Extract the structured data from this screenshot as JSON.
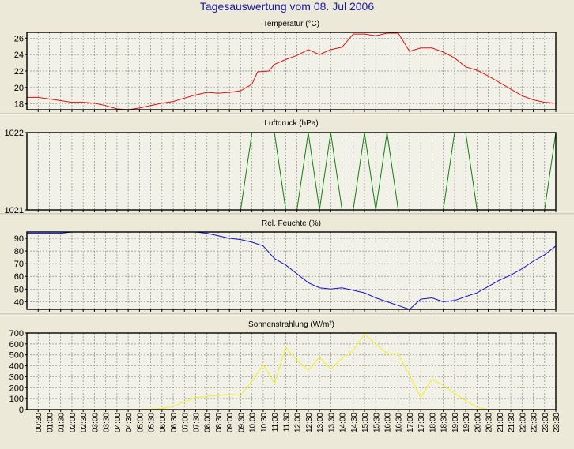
{
  "page_title": "Tagesauswertung vom 08. Jul 2006",
  "x_ticks": [
    "00:30",
    "01:00",
    "01:30",
    "02:00",
    "02:30",
    "03:00",
    "03:30",
    "04:00",
    "04:30",
    "05:00",
    "05:30",
    "06:00",
    "06:30",
    "07:00",
    "07:30",
    "08:00",
    "08:30",
    "09:00",
    "09:30",
    "10:00",
    "10:30",
    "11:00",
    "11:30",
    "12:00",
    "12:30",
    "13:00",
    "13:30",
    "14:00",
    "14:30",
    "15:00",
    "15:30",
    "16:00",
    "16:30",
    "17:00",
    "17:30",
    "18:00",
    "18:30",
    "19:00",
    "19:30",
    "20:00",
    "20:30",
    "21:00",
    "21:30",
    "22:00",
    "22:30",
    "23:00",
    "23:30"
  ],
  "colors": {
    "background": "#ece9d8",
    "plot_background": "#f2f1e8",
    "grid": "#8c8c8c",
    "title": "#1a1aa6",
    "temperature": "#e01010",
    "pressure": "#108010",
    "humidity": "#1010d0",
    "radiation": "#f0f020"
  },
  "chart_data": [
    {
      "type": "line",
      "title": "Temperatur (°C)",
      "ylim": [
        17.3,
        26.7
      ],
      "yticks": [
        "18",
        "20",
        "22",
        "24",
        "26"
      ],
      "series": [
        {
          "x": [
            "00:00",
            "00:30",
            "01:00",
            "01:30",
            "02:00",
            "02:30",
            "03:00",
            "03:30",
            "04:00",
            "04:30",
            "05:00",
            "05:30",
            "06:00",
            "06:30",
            "07:00",
            "07:30",
            "08:00",
            "08:30",
            "09:00",
            "09:30",
            "10:00",
            "10:15",
            "10:45",
            "11:00",
            "11:30",
            "12:00",
            "12:30",
            "13:00",
            "13:30",
            "14:00",
            "14:30",
            "15:00",
            "15:30",
            "16:00",
            "16:30",
            "17:00",
            "17:30",
            "18:00",
            "18:30",
            "19:00",
            "19:30",
            "20:00",
            "20:30",
            "21:00",
            "21:30",
            "22:00",
            "22:30",
            "23:00",
            "23:30"
          ],
          "values": [
            18.8,
            18.8,
            18.6,
            18.4,
            18.2,
            18.2,
            18.1,
            17.8,
            17.4,
            17.3,
            17.5,
            17.8,
            18.1,
            18.3,
            18.7,
            19.1,
            19.4,
            19.3,
            19.4,
            19.6,
            20.4,
            21.9,
            22.0,
            22.8,
            23.4,
            23.9,
            24.6,
            24.0,
            24.6,
            24.9,
            26.5,
            26.5,
            26.3,
            26.6,
            26.6,
            24.4,
            24.8,
            24.8,
            24.3,
            23.6,
            22.5,
            22.1,
            21.4,
            20.6,
            19.8,
            19.0,
            18.5,
            18.2,
            18.1
          ]
        }
      ]
    },
    {
      "type": "line",
      "title": "Luftdruck (hPa)",
      "ylim": [
        1021,
        1022
      ],
      "yticks": [
        "1021",
        "1022"
      ],
      "series": [
        {
          "x": [
            "00:00",
            "09:30",
            "10:00",
            "11:00",
            "11:30",
            "12:00",
            "12:30",
            "13:00",
            "13:30",
            "14:00",
            "14:30",
            "15:00",
            "15:30",
            "16:00",
            "16:30",
            "17:00",
            "17:30",
            "18:00",
            "18:30",
            "19:00",
            "19:30",
            "20:00",
            "20:30",
            "21:00",
            "21:30",
            "22:00",
            "22:30",
            "23:00",
            "23:30"
          ],
          "values": [
            1021,
            1021,
            1022,
            1022,
            1021,
            1021,
            1022,
            1021,
            1022,
            1021,
            1021,
            1022,
            1021,
            1022,
            1021,
            1021,
            1021,
            1021,
            1021,
            1022,
            1022,
            1021,
            1021,
            1021,
            1021,
            1021,
            1021,
            1021,
            1022
          ]
        }
      ]
    },
    {
      "type": "line",
      "title": "Rel. Feuchte (%)",
      "ylim": [
        34,
        95
      ],
      "yticks": [
        "40",
        "50",
        "60",
        "70",
        "80",
        "90"
      ],
      "series": [
        {
          "x": [
            "00:00",
            "01:00",
            "01:30",
            "02:00",
            "07:30",
            "08:00",
            "08:30",
            "09:00",
            "09:30",
            "10:00",
            "10:30",
            "11:00",
            "11:30",
            "12:00",
            "12:30",
            "13:00",
            "13:30",
            "14:00",
            "14:30",
            "15:00",
            "15:30",
            "16:00",
            "16:30",
            "17:00",
            "17:30",
            "18:00",
            "18:30",
            "19:00",
            "19:30",
            "20:00",
            "20:30",
            "21:00",
            "21:30",
            "22:00",
            "22:30",
            "23:00",
            "23:30"
          ],
          "values": [
            94,
            94,
            94,
            95,
            95,
            94,
            92,
            90,
            89,
            87,
            84,
            74,
            69,
            62,
            55,
            51,
            50,
            51,
            49,
            47,
            43,
            40,
            37,
            34,
            42,
            43,
            40,
            41,
            44,
            47,
            52,
            57,
            61,
            66,
            72,
            77,
            84
          ]
        }
      ]
    },
    {
      "type": "line",
      "title": "Sonnenstrahlung (W/m²)",
      "ylim": [
        0,
        700
      ],
      "yticks": [
        "0",
        "100",
        "200",
        "300",
        "400",
        "500",
        "600",
        "700"
      ],
      "series": [
        {
          "x": [
            "05:00",
            "05:30",
            "06:00",
            "06:30",
            "07:00",
            "07:30",
            "08:00",
            "08:30",
            "09:00",
            "09:30",
            "10:00",
            "10:30",
            "11:00",
            "11:30",
            "12:00",
            "12:30",
            "13:00",
            "13:30",
            "14:00",
            "14:30",
            "15:00",
            "15:30",
            "16:00",
            "16:30",
            "17:00",
            "17:30",
            "18:00",
            "18:30",
            "19:00",
            "19:30",
            "20:00",
            "20:30"
          ],
          "values": [
            0,
            5,
            10,
            30,
            70,
            110,
            120,
            130,
            140,
            130,
            260,
            410,
            240,
            570,
            450,
            360,
            480,
            370,
            470,
            540,
            690,
            600,
            510,
            510,
            310,
            110,
            280,
            220,
            150,
            80,
            20,
            0
          ]
        }
      ]
    }
  ]
}
